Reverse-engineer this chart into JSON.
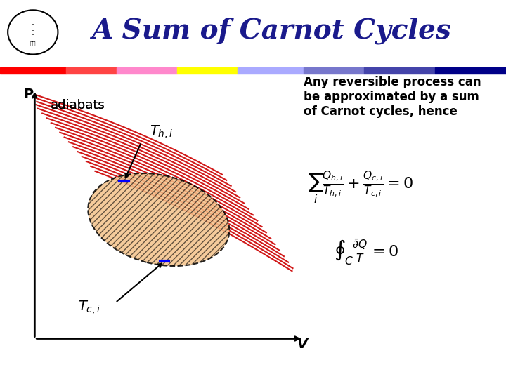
{
  "title": "A Sum of Carnot Cycles",
  "title_color": "#1a1a8c",
  "title_fontsize": 28,
  "bg_color": "#ffffff",
  "stripe_colors": {
    "top1": "#ff0000",
    "top2": "#ff88ff",
    "top3": "#ffff00",
    "top4": "#8888ff",
    "top5": "#0000cc"
  },
  "bar_colors_top": [
    "#ff0000",
    "#ff6666",
    "#ff88ff",
    "#ffff00",
    "#aaaaff",
    "#6666cc",
    "#0000cc"
  ],
  "ellipse_color": "#f4c28a",
  "ellipse_edge": "#000000",
  "red_line_color": "#cc0000",
  "text_color": "#000000",
  "adiabats_label": "adiabats",
  "th_label": "T_{h,i}",
  "tc_label": "T_{c,i}",
  "p_label": "P",
  "v_label": "V",
  "right_text": "Any reversible process can\nbe approximated by a sum\nof Carnot cycles, hence",
  "eq1": "\\sum_i \\frac{Q_{h,i}}{T_{h,i}} + \\frac{Q_{c,i}}{T_{c,i}} = 0",
  "eq2": "\\oint_C \\frac{\\bar{d}Q}{T} = 0"
}
